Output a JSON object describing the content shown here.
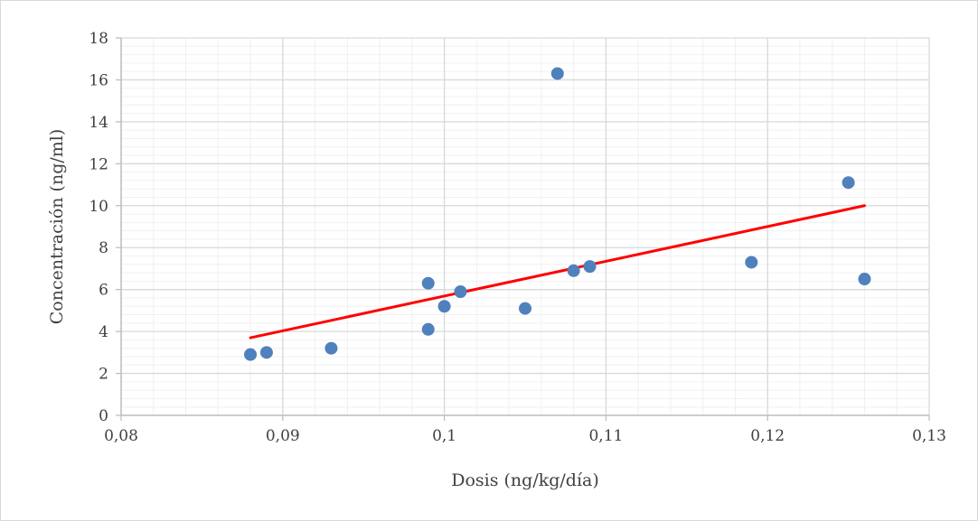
{
  "chart_data": {
    "type": "scatter",
    "title": "",
    "xlabel": "Dosis (ng/kg/día)",
    "ylabel": "Concentración (ng/ml)",
    "xlim": [
      0.08,
      0.13
    ],
    "ylim": [
      0,
      18
    ],
    "x_ticks": [
      0.08,
      0.09,
      0.1,
      0.11,
      0.12,
      0.13
    ],
    "x_tick_labels": [
      "0,08",
      "0,09",
      "0,1",
      "0,11",
      "0,12",
      "0,13"
    ],
    "y_ticks": [
      0,
      2,
      4,
      6,
      8,
      10,
      12,
      14,
      16,
      18
    ],
    "y_tick_labels": [
      "0",
      "2",
      "4",
      "6",
      "8",
      "10",
      "12",
      "14",
      "16",
      "18"
    ],
    "grid": "major and minor",
    "legend": "none",
    "colors": {
      "points": "#4f81bd",
      "trendline": "#ff0000",
      "major_grid": "#d9d9d9",
      "minor_grid": "#f0f0f0",
      "axis": "#bfbfbf"
    },
    "series": [
      {
        "points": [
          {
            "x": 0.088,
            "y": 2.9
          },
          {
            "x": 0.089,
            "y": 3.0
          },
          {
            "x": 0.093,
            "y": 3.2
          },
          {
            "x": 0.099,
            "y": 4.1
          },
          {
            "x": 0.099,
            "y": 6.3
          },
          {
            "x": 0.1,
            "y": 5.2
          },
          {
            "x": 0.101,
            "y": 5.9
          },
          {
            "x": 0.105,
            "y": 5.1
          },
          {
            "x": 0.107,
            "y": 16.3
          },
          {
            "x": 0.108,
            "y": 6.9
          },
          {
            "x": 0.109,
            "y": 7.1
          },
          {
            "x": 0.119,
            "y": 7.3
          },
          {
            "x": 0.125,
            "y": 11.1
          },
          {
            "x": 0.126,
            "y": 6.5
          }
        ]
      }
    ],
    "trendline": {
      "type": "linear",
      "start": {
        "x": 0.088,
        "y": 3.7
      },
      "end": {
        "x": 0.126,
        "y": 10.0
      }
    }
  }
}
